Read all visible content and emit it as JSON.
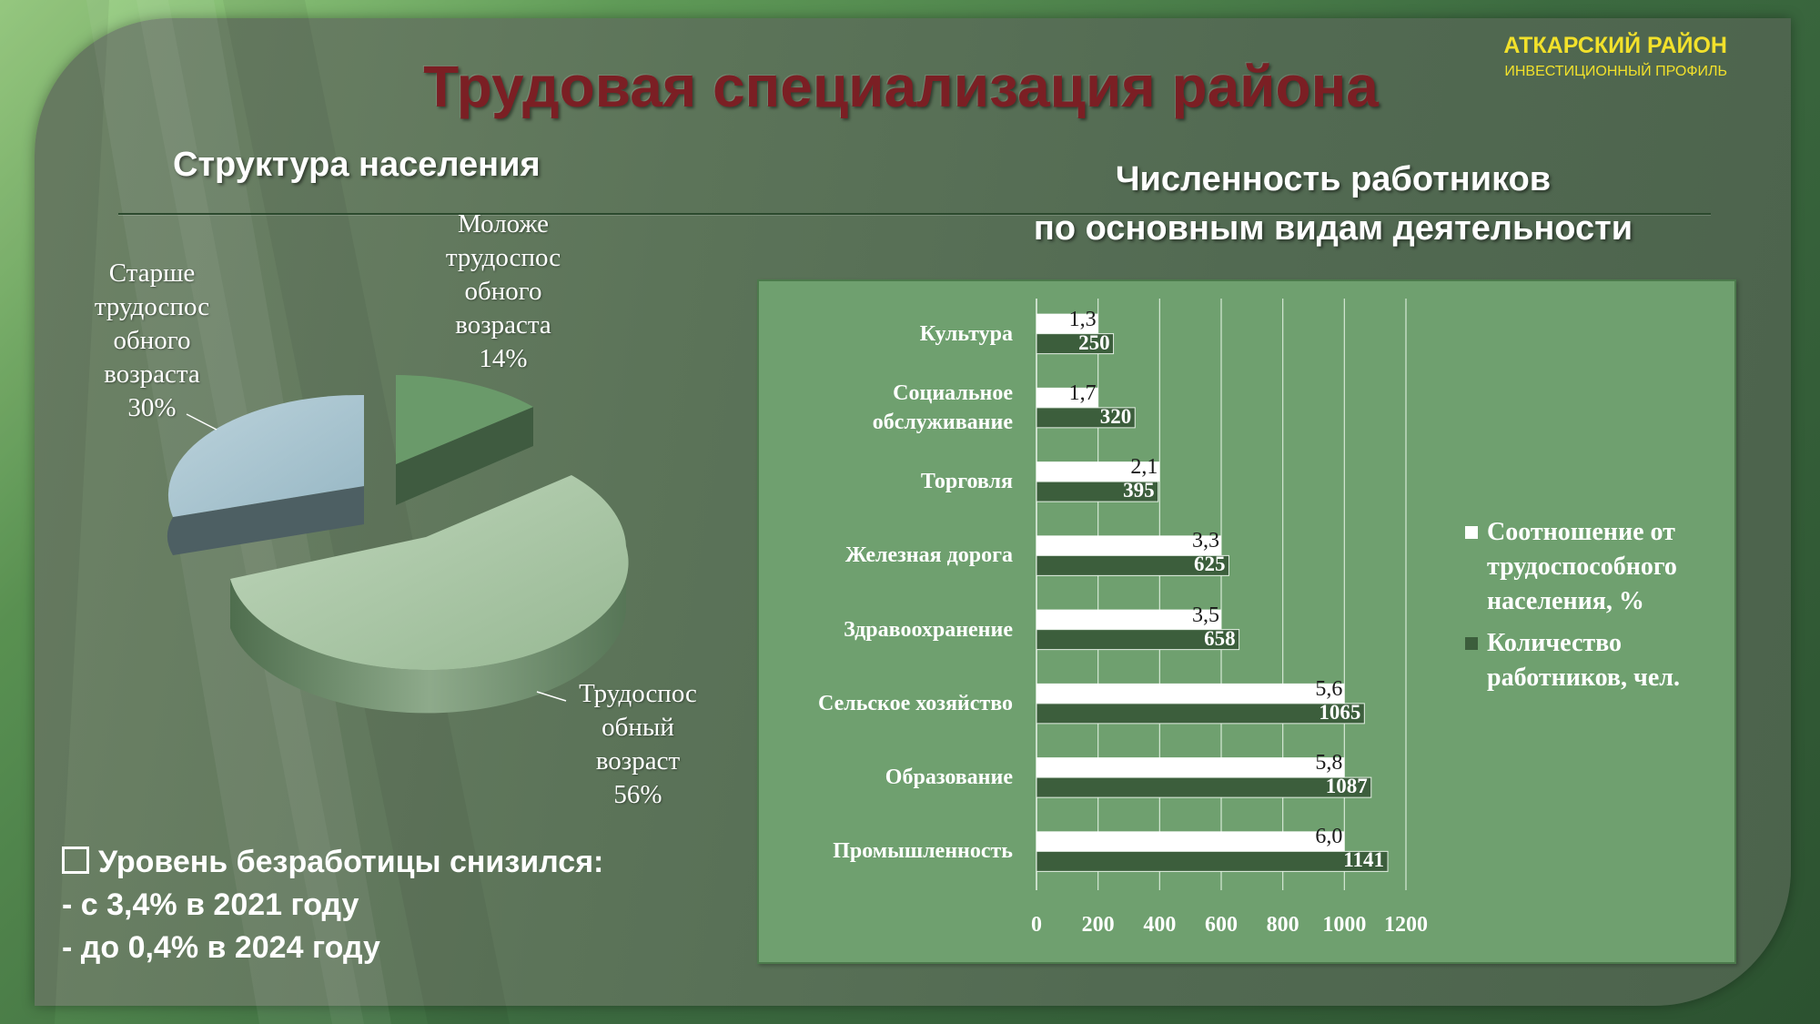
{
  "header": {
    "title": "Трудовая специализация района",
    "brand": "АТКАРСКИЙ РАЙОН",
    "brand_sub": "ИНВЕСТИЦИОННЫЙ ПРОФИЛЬ"
  },
  "pie_section": {
    "heading": "Структура населения"
  },
  "bar_section": {
    "heading_line1": "Численность работников",
    "heading_line2": "по основным видам деятельности"
  },
  "unemployment": {
    "headline": "Уровень безработицы снизился:",
    "line1": "- с 3,4% в 2021 году",
    "line2": "- до 0,4% в 2024 году"
  },
  "colors": {
    "title": "#7b1f24",
    "brand": "#f2e12b",
    "pie_young": "#6a9a6a",
    "pie_old": "#a9c6d2",
    "pie_working": "#a8c6a4",
    "bar_ratio": "#ffffff",
    "bar_count": "#3c5e3c",
    "chart_bg": "#6fa06f"
  },
  "chart_data": [
    {
      "type": "pie",
      "title": "Структура населения",
      "slices": [
        {
          "label_lines": [
            "Моложе",
            "трудоспос",
            "обного",
            "возраста"
          ],
          "value_label": "14%",
          "value": 14
        },
        {
          "label_lines": [
            "Старше",
            "трудоспос",
            "обного",
            "возраста"
          ],
          "value_label": "30%",
          "value": 30
        },
        {
          "label_lines": [
            "Трудоспос",
            "обный",
            "возраст"
          ],
          "value_label": "56%",
          "value": 56
        }
      ]
    },
    {
      "type": "bar",
      "orientation": "horizontal",
      "title": "Численность работников по основным видам деятельности",
      "categories": [
        {
          "lines": [
            "Культура"
          ]
        },
        {
          "lines": [
            "Социальное",
            "обслуживание"
          ]
        },
        {
          "lines": [
            "Торговля"
          ]
        },
        {
          "lines": [
            "Железная дорога"
          ]
        },
        {
          "lines": [
            "Здравоохранение"
          ]
        },
        {
          "lines": [
            "Сельское хозяйство"
          ]
        },
        {
          "lines": [
            "Образование"
          ]
        },
        {
          "lines": [
            "Промышленность"
          ]
        }
      ],
      "series": [
        {
          "name": "Соотношение от трудоспособного населения, %",
          "legend_lines": [
            "Соотношение от",
            "трудоспособного",
            "населения, %"
          ],
          "values": [
            1.3,
            1.7,
            2.1,
            3.3,
            3.5,
            5.6,
            5.8,
            6.0
          ],
          "labels": [
            "1,3",
            "1,7",
            "2,1",
            "3,3",
            "3,5",
            "5,6",
            "5,8",
            "6,0"
          ],
          "bar_lengths_in_axis_units": [
            200,
            200,
            400,
            600,
            600,
            1000,
            1000,
            1000
          ]
        },
        {
          "name": "Количество работников, чел.",
          "legend_lines": [
            "Количество",
            "работников, чел."
          ],
          "values": [
            250,
            320,
            395,
            625,
            658,
            1065,
            1087,
            1141
          ],
          "labels": [
            "250",
            "320",
            "395",
            "625",
            "658",
            "1065",
            "1087",
            "1141"
          ]
        }
      ],
      "xlim": [
        0,
        1200
      ],
      "xticks": [
        "0",
        "200",
        "400",
        "600",
        "800",
        "1000",
        "1200"
      ],
      "grid": true,
      "legend": "right"
    }
  ]
}
